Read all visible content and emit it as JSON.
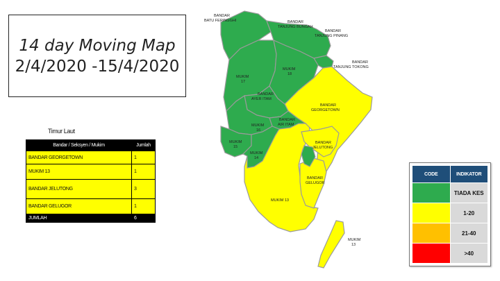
{
  "title": {
    "line1": "14 day Moving Map",
    "line2": "2/4/2020 -15/4/2020"
  },
  "district": "Timur Laut",
  "table": {
    "headers": [
      "Bandar / Seksyen / Mukim",
      "Jumlah"
    ],
    "rows": [
      {
        "area": "BANDAR GEORGETOWN",
        "count": "1"
      },
      {
        "area": "MUKIM 13",
        "count": "1"
      },
      {
        "area": "BANDAR JELUTONG",
        "count": "3"
      },
      {
        "area": "BANDAR GELUGOR",
        "count": "1"
      }
    ],
    "total": {
      "label": "JUMLAH",
      "count": "6"
    }
  },
  "legend": {
    "headers": [
      "CODE",
      "INDIKATOR"
    ],
    "items": [
      {
        "color": "#2eab4e",
        "label": "TIADA KES"
      },
      {
        "color": "#ffff00",
        "label": "1-20"
      },
      {
        "color": "#ffc000",
        "label": "21-40"
      },
      {
        "color": "#ff0000",
        "label": ">40"
      }
    ]
  },
  "map": {
    "colors": {
      "green": "#2eab4e",
      "yellow": "#ffff00",
      "border": "#9a9a9a"
    },
    "labels": {
      "batu_ferringhi": [
        "BANDAR",
        "BATU FERINGGHI"
      ],
      "tanjung_bungah": [
        "BANDAR",
        "TANJUNG BUNGAH"
      ],
      "tanjung_pinang": [
        "BANDAR",
        "TANJUNG PINANG"
      ],
      "tanjung_tokong": [
        "BANDAR",
        "TANJUNG TOKONG"
      ],
      "mukim17": [
        "MUKIM",
        "17"
      ],
      "mukim18": [
        "MUKIM",
        "18"
      ],
      "air_itam": [
        "BANDAR",
        "AYER ITAM"
      ],
      "georgetown": [
        "BANDAR",
        "GEORGETOWN"
      ],
      "mukim16": [
        "MUKIM",
        "16"
      ],
      "ayer_hitam": [
        "BANDAR",
        "AIR ITAM"
      ],
      "mukim15": [
        "MUKIM",
        "15"
      ],
      "mukim14": [
        "MUKIM",
        "14"
      ],
      "jelutong": [
        "BANDAR",
        "JELUTONG"
      ],
      "gelugor": [
        "BANDAR",
        "GELUGOR"
      ],
      "mukim13_main": "MUKIM 13",
      "mukim13_island": [
        "MUKIM",
        "13"
      ]
    }
  }
}
